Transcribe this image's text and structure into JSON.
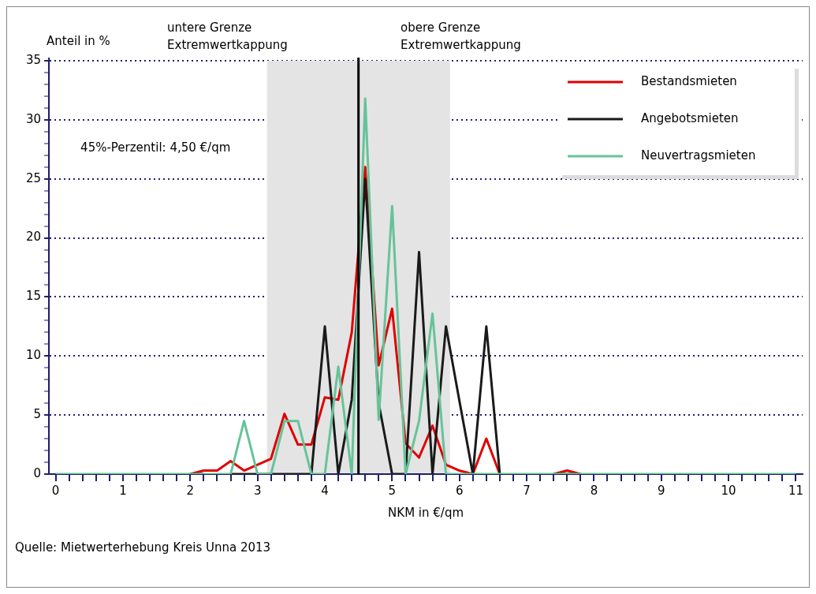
{
  "chart_data": {
    "type": "line",
    "xlabel": "NKM in €/qm",
    "ylabel": "Anteil in %",
    "x": [
      0,
      0.2,
      0.4,
      0.6,
      0.8,
      1,
      1.2,
      1.4,
      1.6,
      1.8,
      2,
      2.2,
      2.4,
      2.6,
      2.8,
      3,
      3.2,
      3.4,
      3.6,
      3.8,
      4,
      4.2,
      4.4,
      4.6,
      4.8,
      5,
      5.2,
      5.4,
      5.6,
      5.8,
      6,
      6.2,
      6.4,
      6.6,
      6.8,
      7,
      7.2,
      7.4,
      7.6,
      7.8,
      8,
      8.2,
      8.4,
      8.6,
      8.8,
      9,
      9.2,
      9.4,
      9.6,
      9.8,
      10,
      10.2,
      10.4,
      10.6,
      10.8,
      11
    ],
    "series": [
      {
        "name": "Bestandsmieten",
        "color": "#e00000",
        "values": [
          null,
          null,
          null,
          null,
          null,
          null,
          null,
          null,
          null,
          null,
          0,
          0.3,
          0.3,
          1.1,
          0.3,
          0.8,
          1.3,
          5.1,
          2.5,
          2.5,
          6.5,
          6.3,
          12,
          26,
          9.2,
          14,
          2.6,
          1.4,
          4.1,
          0.8,
          0.3,
          0,
          3,
          0,
          null,
          null,
          null,
          0,
          0.3,
          0,
          null,
          null,
          null,
          null,
          null,
          null,
          null,
          null,
          null,
          null,
          null,
          null,
          null,
          null,
          null,
          null
        ]
      },
      {
        "name": "Angebotsmieten",
        "color": "#1a1a1a",
        "values": [
          null,
          null,
          null,
          null,
          null,
          null,
          null,
          null,
          null,
          null,
          0,
          0,
          null,
          0,
          0,
          0,
          0,
          0,
          0,
          0,
          12.5,
          0,
          6.3,
          25,
          6,
          0,
          0,
          18.8,
          0,
          12.5,
          6.2,
          0,
          12.5,
          0,
          null,
          null,
          null,
          0,
          0,
          0,
          null,
          null,
          null,
          null,
          null,
          null,
          null,
          null,
          null,
          null,
          null,
          null,
          null,
          null,
          null,
          null
        ]
      },
      {
        "name": "Neuvertragsmieten",
        "color": "#66c399",
        "values": [
          0,
          0,
          0,
          0,
          0,
          0,
          0,
          0,
          0,
          0,
          0,
          0,
          0,
          0,
          4.5,
          0,
          0,
          4.5,
          4.5,
          0,
          0,
          9.1,
          0,
          31.8,
          4.6,
          22.7,
          0,
          4.5,
          13.6,
          0,
          0,
          0,
          0,
          0,
          0,
          0,
          0,
          0,
          0,
          0,
          0,
          0,
          0,
          0,
          0,
          0,
          0,
          0,
          0,
          0,
          0,
          0,
          0,
          0,
          0,
          0
        ]
      }
    ],
    "xlim": [
      -0.1,
      11.1
    ],
    "ylim": [
      0,
      35
    ],
    "xticks": [
      0,
      {
        "value": 0.2,
        "label": null
      },
      {
        "value": 0.4,
        "label": null
      },
      {
        "value": 0.6,
        "label": null
      },
      {
        "value": 0.8,
        "label": null
      },
      1,
      {
        "value": 1.2,
        "label": null
      },
      {
        "value": 1.4,
        "label": null
      },
      {
        "value": 1.6,
        "label": null
      },
      {
        "value": 1.8,
        "label": null
      },
      2,
      {
        "value": 2.2,
        "label": null
      },
      {
        "value": 2.4,
        "label": null
      },
      {
        "value": 2.6,
        "label": null
      },
      {
        "value": 2.8,
        "label": null
      },
      3,
      {
        "value": 3.2,
        "label": null
      },
      {
        "value": 3.4,
        "label": null
      },
      {
        "value": 3.6,
        "label": null
      },
      {
        "value": 3.8,
        "label": null
      },
      4,
      {
        "value": 4.2,
        "label": null
      },
      {
        "value": 4.4,
        "label": null
      },
      {
        "value": 4.6,
        "label": null
      },
      {
        "value": 4.8,
        "label": null
      },
      5,
      {
        "value": 5.2,
        "label": null
      },
      {
        "value": 5.4,
        "label": null
      },
      {
        "value": 5.6,
        "label": null
      },
      {
        "value": 5.8,
        "label": null
      },
      6,
      {
        "value": 6.2,
        "label": null
      },
      {
        "value": 6.4,
        "label": null
      },
      {
        "value": 6.6,
        "label": null
      },
      {
        "value": 6.8,
        "label": null
      },
      7,
      {
        "value": 7.2,
        "label": null
      },
      {
        "value": 7.4,
        "label": null
      },
      {
        "value": 7.6,
        "label": null
      },
      {
        "value": 7.8,
        "label": null
      },
      8,
      {
        "value": 8.2,
        "label": null
      },
      {
        "value": 8.4,
        "label": null
      },
      {
        "value": 8.6,
        "label": null
      },
      {
        "value": 8.8,
        "label": null
      },
      9,
      {
        "value": 9.2,
        "label": null
      },
      {
        "value": 9.4,
        "label": null
      },
      {
        "value": 9.6,
        "label": null
      },
      {
        "value": 9.8,
        "label": null
      },
      10,
      {
        "value": 10.2,
        "label": null
      },
      {
        "value": 10.4,
        "label": null
      },
      {
        "value": 10.6,
        "label": null
      },
      {
        "value": 10.8,
        "label": null
      },
      11
    ],
    "yticks": [
      0,
      {
        "value": 1,
        "label": null
      },
      {
        "value": 2,
        "label": null
      },
      {
        "value": 3,
        "label": null
      },
      {
        "value": 4,
        "label": null
      },
      5,
      {
        "value": 6,
        "label": null
      },
      {
        "value": 7,
        "label": null
      },
      {
        "value": 8,
        "label": null
      },
      {
        "value": 9,
        "label": null
      },
      10,
      {
        "value": 11,
        "label": null
      },
      {
        "value": 12,
        "label": null
      },
      {
        "value": 13,
        "label": null
      },
      {
        "value": 14,
        "label": null
      },
      15,
      {
        "value": 16,
        "label": null
      },
      {
        "value": 17,
        "label": null
      },
      {
        "value": 18,
        "label": null
      },
      {
        "value": 19,
        "label": null
      },
      20,
      {
        "value": 21,
        "label": null
      },
      {
        "value": 22,
        "label": null
      },
      {
        "value": 23,
        "label": null
      },
      {
        "value": 24,
        "label": null
      },
      25,
      {
        "value": 26,
        "label": null
      },
      {
        "value": 27,
        "label": null
      },
      {
        "value": 28,
        "label": null
      },
      {
        "value": 29,
        "label": null
      },
      30,
      {
        "value": 31,
        "label": null
      },
      {
        "value": 32,
        "label": null
      },
      {
        "value": 33,
        "label": null
      },
      {
        "value": 34,
        "label": null
      },
      35
    ],
    "grid": "y",
    "legend": "top right",
    "marker": "none",
    "line_style": "solid",
    "bands": [
      {
        "axis": "x",
        "from": 3.14,
        "to": 5.86,
        "color": "#e4e4e4"
      }
    ],
    "ref_lines": [
      {
        "axis": "x",
        "value": 4.5,
        "color": "#000000"
      }
    ],
    "annotations": [
      "untere Grenze\nExtremwertkappung",
      "obere Grenze\nExtremwertkappung",
      "45%-Perzentil: 4,50 €/qm",
      "Quelle: Mietwerterhebung Kreis Unna 2013"
    ]
  }
}
